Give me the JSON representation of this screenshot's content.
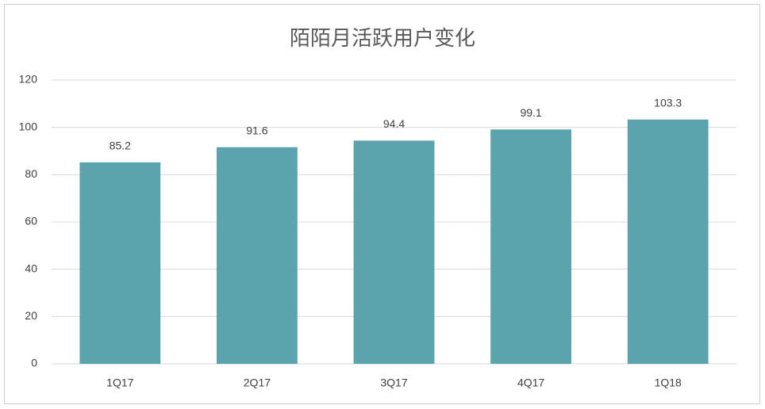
{
  "chart_data": {
    "type": "bar",
    "title": "陌陌月活跃用户变化",
    "categories": [
      "1Q17",
      "2Q17",
      "3Q17",
      "4Q17",
      "1Q18"
    ],
    "values": [
      85.2,
      91.6,
      94.4,
      99.1,
      103.3
    ],
    "color": "#5ba4ae",
    "ylim": [
      0,
      120
    ],
    "yticks": [
      0,
      20,
      40,
      60,
      80,
      100,
      120
    ],
    "grid": true
  }
}
